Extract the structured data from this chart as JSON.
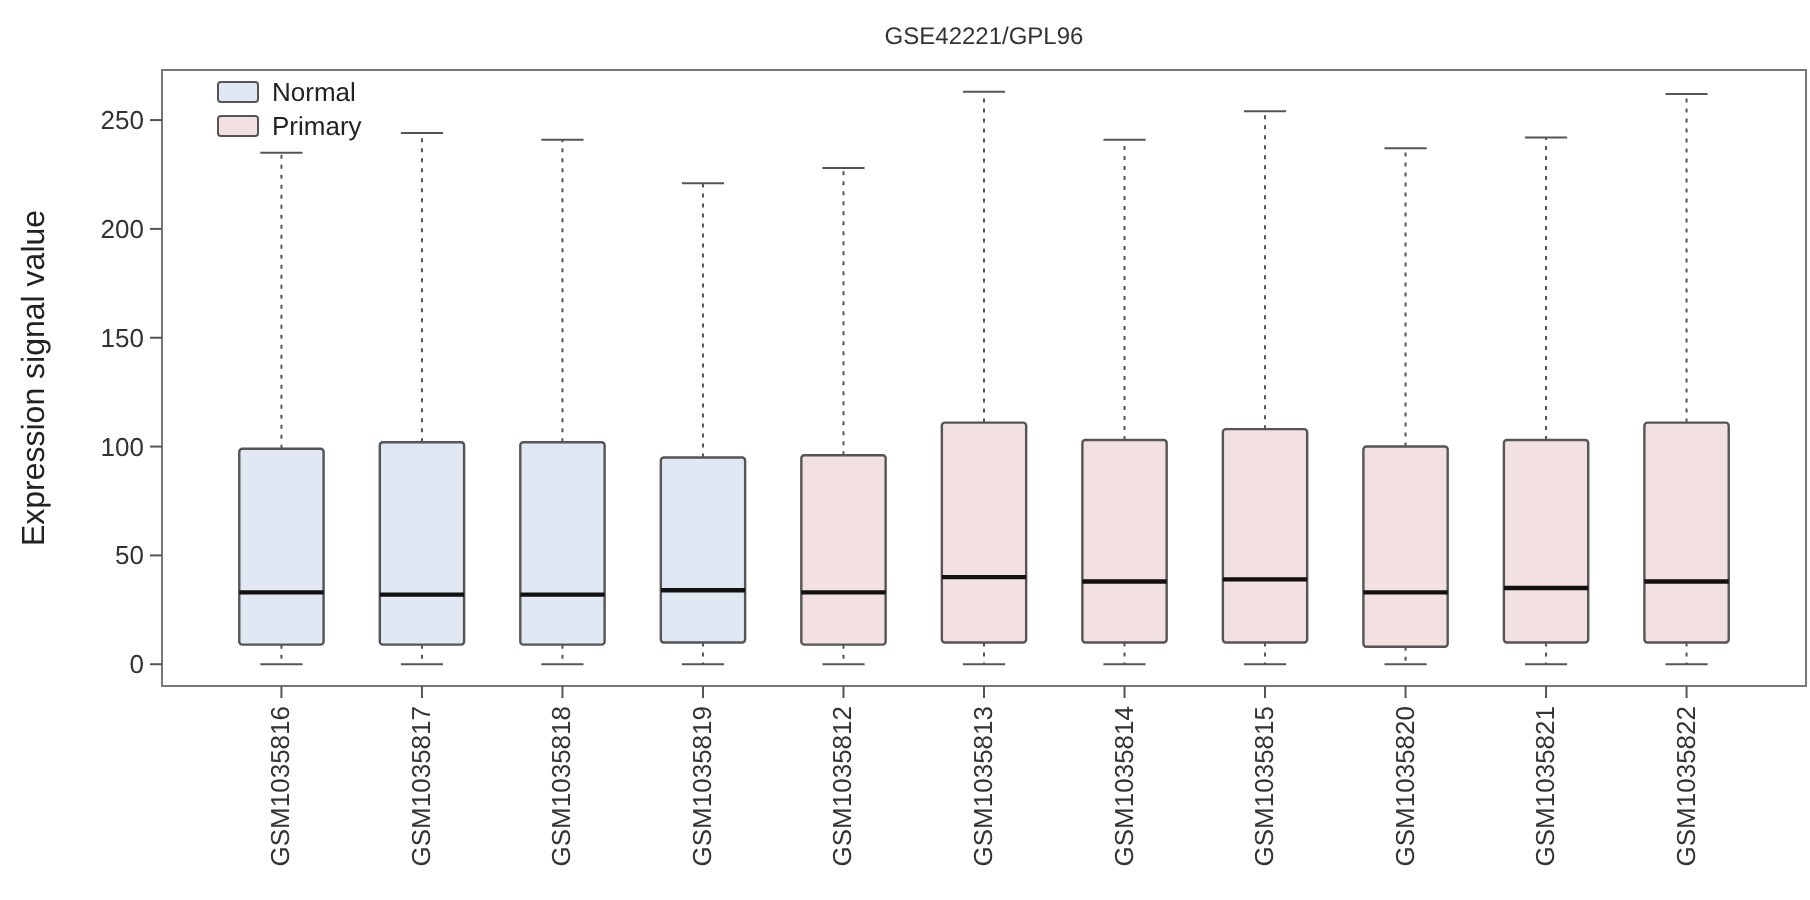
{
  "chart_data": {
    "type": "box",
    "title": "GSE42221/GPL96",
    "ylabel": "Expression signal value",
    "categories": [
      "GSM1035816",
      "GSM1035817",
      "GSM1035818",
      "GSM1035819",
      "GSM1035812",
      "GSM1035813",
      "GSM1035814",
      "GSM1035815",
      "GSM1035820",
      "GSM1035821",
      "GSM1035822"
    ],
    "series": [
      {
        "name": "Normal",
        "color": "#dfe8f3",
        "boxes": [
          {
            "low": 0,
            "q1": 9,
            "median": 33,
            "q3": 99,
            "high": 235
          },
          {
            "low": 0,
            "q1": 9,
            "median": 32,
            "q3": 102,
            "high": 244
          },
          {
            "low": 0,
            "q1": 9,
            "median": 32,
            "q3": 102,
            "high": 241
          },
          {
            "low": 0,
            "q1": 10,
            "median": 34,
            "q3": 95,
            "high": 221
          },
          null,
          null,
          null,
          null,
          null,
          null,
          null
        ]
      },
      {
        "name": "Primary",
        "color": "#f3e1e1",
        "boxes": [
          null,
          null,
          null,
          null,
          {
            "low": 0,
            "q1": 9,
            "median": 33,
            "q3": 96,
            "high": 228
          },
          {
            "low": 0,
            "q1": 10,
            "median": 40,
            "q3": 111,
            "high": 263
          },
          {
            "low": 0,
            "q1": 10,
            "median": 38,
            "q3": 103,
            "high": 241
          },
          {
            "low": 0,
            "q1": 10,
            "median": 39,
            "q3": 108,
            "high": 254
          },
          {
            "low": 0,
            "q1": 8,
            "median": 33,
            "q3": 100,
            "high": 237
          },
          {
            "low": 0,
            "q1": 10,
            "median": 35,
            "q3": 103,
            "high": 242
          },
          {
            "low": 0,
            "q1": 10,
            "median": 38,
            "q3": 111,
            "high": 262
          }
        ]
      }
    ],
    "ylim": [
      -10,
      273
    ],
    "yticks": [
      0,
      50,
      100,
      150,
      200,
      250
    ],
    "grid": false,
    "legend": "top left"
  }
}
